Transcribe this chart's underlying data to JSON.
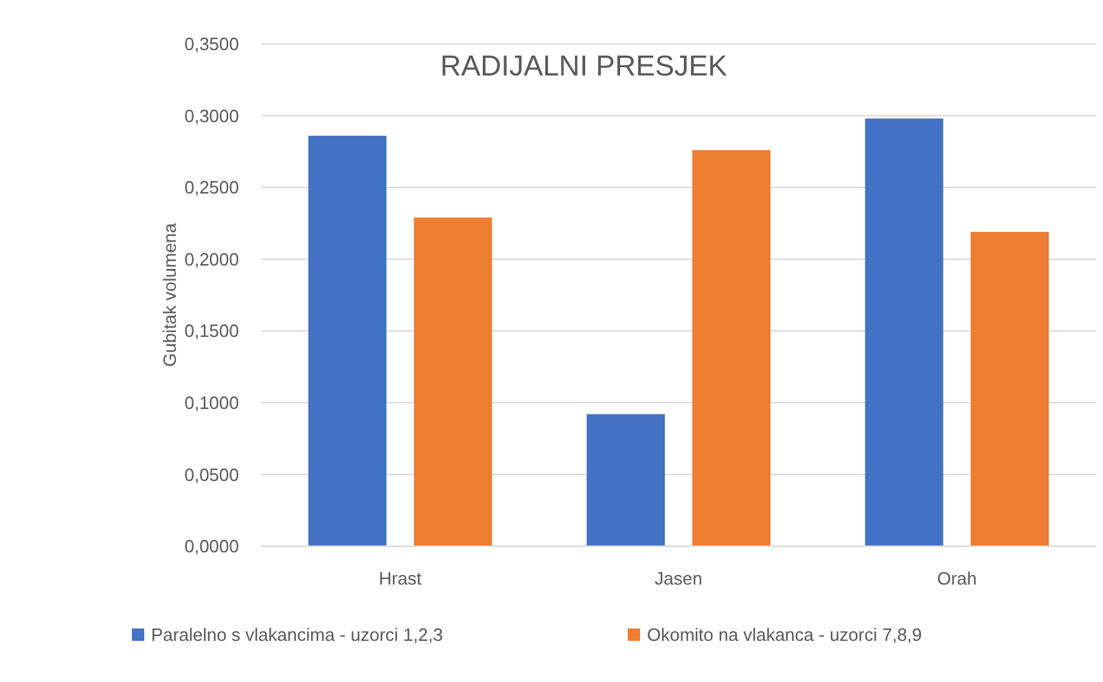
{
  "chart_data": {
    "type": "bar",
    "title": "RADIJALNI PRESJEK",
    "ylabel": "Gubitak volumena",
    "categories": [
      "Hrast",
      "Jasen",
      "Orah"
    ],
    "series": [
      {
        "name": "Paralelno s vlakancima - uzorci 1,2,3",
        "color": "#4472c4",
        "values": [
          0.286,
          0.092,
          0.298
        ]
      },
      {
        "name": "Okomito na vlakanca - uzorci 7,8,9",
        "color": "#ed7d31",
        "values": [
          0.229,
          0.276,
          0.219
        ]
      }
    ],
    "ylim": [
      0,
      0.35
    ],
    "yticks": [
      {
        "value": 0,
        "label": "0,0000"
      },
      {
        "value": 0.05,
        "label": "0,0500"
      },
      {
        "value": 0.1,
        "label": "0,1000"
      },
      {
        "value": 0.15,
        "label": "0,1500"
      },
      {
        "value": 0.2,
        "label": "0,2000"
      },
      {
        "value": 0.25,
        "label": "0,2500"
      },
      {
        "value": 0.3,
        "label": "0,3000"
      },
      {
        "value": 0.35,
        "label": "0,3500"
      }
    ],
    "grid": "y",
    "legend": "bottom"
  }
}
